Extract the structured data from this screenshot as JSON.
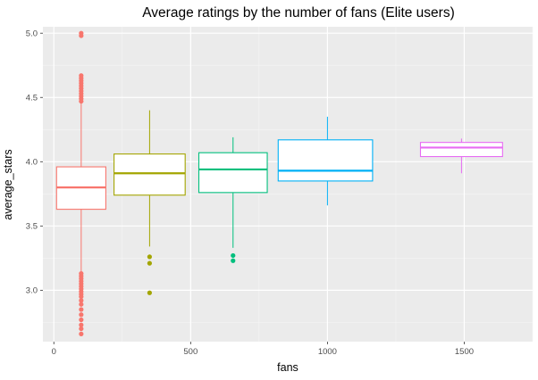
{
  "chart_data": {
    "type": "box",
    "title": "Average ratings by the number of fans (Elite users)",
    "xlabel": "fans",
    "ylabel": "average_stars",
    "xlim": [
      -40,
      1750
    ],
    "ylim": [
      2.6,
      5.05
    ],
    "x_ticks": [
      0,
      500,
      1000,
      1500
    ],
    "x_tick_labels": [
      "0",
      "500",
      "1000",
      "1500"
    ],
    "y_ticks": [
      3.0,
      3.5,
      4.0,
      4.5,
      5.0
    ],
    "y_tick_labels": [
      "3.0",
      "3.5",
      "4.0",
      "4.5",
      "5.0"
    ],
    "grid": true,
    "background": "#ebebeb",
    "boxes": [
      {
        "x_center": 100,
        "x_left": 10,
        "x_right": 190,
        "color": "#f8766d",
        "q1": 3.63,
        "median": 3.8,
        "q3": 3.96,
        "whisker_low": 3.14,
        "whisker_high": 4.46,
        "outliers": [
          5.0,
          4.98,
          4.67,
          4.65,
          4.63,
          4.61,
          4.59,
          4.57,
          4.55,
          4.53,
          4.51,
          4.49,
          4.47,
          3.13,
          3.11,
          3.09,
          3.07,
          3.05,
          3.03,
          3.01,
          2.99,
          2.97,
          2.95,
          2.92,
          2.89,
          2.85,
          2.81,
          2.77,
          2.73,
          2.7,
          2.66
        ]
      },
      {
        "x_center": 350,
        "x_left": 220,
        "x_right": 480,
        "color": "#a3a500",
        "q1": 3.74,
        "median": 3.91,
        "q3": 4.06,
        "whisker_low": 3.34,
        "whisker_high": 4.4,
        "outliers": [
          3.26,
          3.21,
          2.98
        ]
      },
      {
        "x_center": 655,
        "x_left": 530,
        "x_right": 780,
        "color": "#00bf7d",
        "q1": 3.76,
        "median": 3.94,
        "q3": 4.07,
        "whisker_low": 3.33,
        "whisker_high": 4.19,
        "outliers": [
          3.27,
          3.23
        ]
      },
      {
        "x_center": 1000,
        "x_left": 820,
        "x_right": 1165,
        "color": "#00b0f6",
        "q1": 3.85,
        "median": 3.93,
        "q3": 4.17,
        "whisker_low": 3.66,
        "whisker_high": 4.35,
        "outliers": []
      },
      {
        "x_center": 1490,
        "x_left": 1340,
        "x_right": 1640,
        "color": "#e76bf3",
        "q1": 4.04,
        "median": 4.11,
        "q3": 4.15,
        "whisker_low": 3.91,
        "whisker_high": 4.18,
        "outliers": []
      }
    ]
  }
}
